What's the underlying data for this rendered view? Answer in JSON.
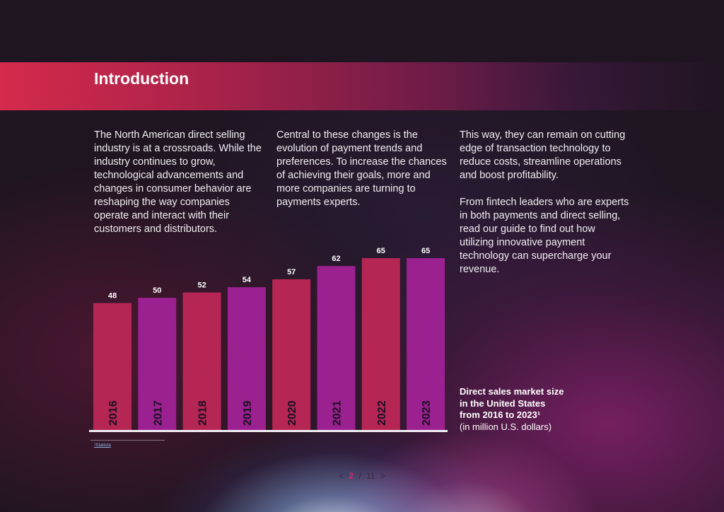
{
  "header": {
    "title": "Introduction"
  },
  "body": {
    "col1": [
      "The North American direct selling industry is at a crossroads. While the industry continues to grow, technological advancements and changes in consumer behavior are reshaping the way companies operate and interact with their customers and distributors."
    ],
    "col2": [
      "Central to these changes is the evolution of payment trends and preferences. To increase the chances of achieving their goals, more and more companies are turning to payments experts."
    ],
    "col3": [
      "This way, they can remain on cutting edge of transaction technology to reduce costs, streamline operations and boost profitability.",
      "From fintech leaders who are experts in both payments and direct selling, read our guide to find out how utilizing innovative payment technology can supercharge your revenue."
    ]
  },
  "chart_data": {
    "type": "bar",
    "categories": [
      "2016",
      "2017",
      "2018",
      "2019",
      "2020",
      "2021",
      "2022",
      "2023"
    ],
    "values": [
      48,
      50,
      52,
      54,
      57,
      62,
      65,
      65
    ],
    "title": "",
    "xlabel": "",
    "ylabel": "",
    "ylim": [
      0,
      65
    ],
    "grid": false,
    "legend": "none",
    "colors": [
      "#b52655",
      "#9b2190"
    ]
  },
  "caption": {
    "line1": "Direct sales market size",
    "line2": "in the United States",
    "line3": "from 2016 to 2023¹",
    "unit": "(in million U.S. dollars)"
  },
  "footnote": {
    "text": "¹Statista"
  },
  "pager": {
    "prev": "<",
    "current": "2",
    "separator": "/",
    "total": "11",
    "next": ">"
  }
}
